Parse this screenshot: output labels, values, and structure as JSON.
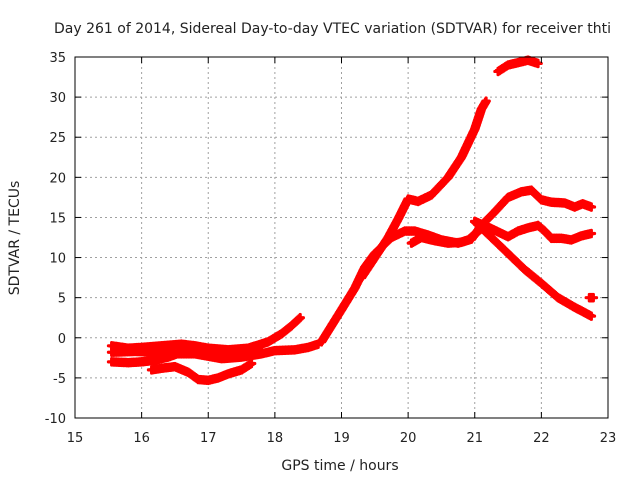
{
  "chart_data": {
    "type": "scatter",
    "title": "Day 261 of 2014, Sidereal Day-to-day VTEC variation (SDTVAR) for receiver thti",
    "xlabel": "GPS time / hours",
    "ylabel": "SDTVAR / TECUs",
    "xlim": [
      15,
      23
    ],
    "ylim": [
      -10,
      35
    ],
    "xticks": [
      15,
      16,
      17,
      18,
      19,
      20,
      21,
      22,
      23
    ],
    "yticks": [
      -10,
      -5,
      0,
      5,
      10,
      15,
      20,
      25,
      30,
      35
    ],
    "grid": true,
    "color": "#ff0000",
    "series": [
      {
        "name": "track-1",
        "points": [
          [
            15.55,
            -1.0
          ],
          [
            15.8,
            -1.3
          ],
          [
            16.0,
            -1.2
          ],
          [
            16.3,
            -1.0
          ],
          [
            16.6,
            -0.8
          ],
          [
            16.8,
            -1.0
          ],
          [
            17.0,
            -1.3
          ],
          [
            17.3,
            -1.5
          ],
          [
            17.6,
            -1.3
          ],
          [
            17.9,
            -0.5
          ],
          [
            18.1,
            0.5
          ],
          [
            18.25,
            1.5
          ],
          [
            18.38,
            2.5
          ]
        ]
      },
      {
        "name": "track-2",
        "points": [
          [
            15.55,
            -1.8
          ],
          [
            15.9,
            -1.7
          ],
          [
            16.2,
            -1.8
          ],
          [
            16.5,
            -2.0
          ],
          [
            16.8,
            -2.0
          ],
          [
            17.0,
            -2.3
          ],
          [
            17.2,
            -2.6
          ],
          [
            17.5,
            -2.4
          ],
          [
            17.8,
            -2.0
          ],
          [
            18.0,
            -1.6
          ],
          [
            18.3,
            -1.5
          ],
          [
            18.5,
            -1.2
          ],
          [
            18.65,
            -0.8
          ]
        ]
      },
      {
        "name": "track-3",
        "points": [
          [
            15.55,
            -3.0
          ],
          [
            15.8,
            -3.1
          ],
          [
            16.0,
            -3.0
          ],
          [
            16.2,
            -2.8
          ],
          [
            16.4,
            -2.4
          ],
          [
            16.6,
            -1.8
          ],
          [
            16.85,
            -1.5
          ],
          [
            17.05,
            -1.8
          ],
          [
            17.3,
            -2.5
          ],
          [
            17.55,
            -2.3
          ],
          [
            17.8,
            -1.8
          ]
        ]
      },
      {
        "name": "track-4",
        "points": [
          [
            16.15,
            -4.0
          ],
          [
            16.3,
            -3.8
          ],
          [
            16.5,
            -3.6
          ],
          [
            16.7,
            -4.3
          ],
          [
            16.85,
            -5.2
          ],
          [
            17.0,
            -5.3
          ],
          [
            17.15,
            -5.0
          ],
          [
            17.3,
            -4.5
          ],
          [
            17.5,
            -4.0
          ],
          [
            17.65,
            -3.2
          ]
        ]
      },
      {
        "name": "track-5",
        "points": [
          [
            18.7,
            -0.5
          ],
          [
            18.85,
            1.5
          ],
          [
            19.0,
            3.5
          ],
          [
            19.2,
            6.2
          ],
          [
            19.35,
            8.8
          ],
          [
            19.5,
            10.5
          ],
          [
            19.75,
            12.5
          ],
          [
            19.95,
            13.3
          ],
          [
            20.1,
            13.3
          ],
          [
            20.3,
            12.8
          ],
          [
            20.5,
            12.2
          ],
          [
            20.75,
            11.8
          ],
          [
            20.9,
            12.2
          ],
          [
            21.1,
            13.6
          ]
        ]
      },
      {
        "name": "track-6",
        "points": [
          [
            19.3,
            7.5
          ],
          [
            19.5,
            10.0
          ],
          [
            19.7,
            12.5
          ],
          [
            19.85,
            14.8
          ],
          [
            20.0,
            17.3
          ],
          [
            20.15,
            17.0
          ],
          [
            20.35,
            17.8
          ],
          [
            20.6,
            20.0
          ],
          [
            20.8,
            22.5
          ],
          [
            21.0,
            26.0
          ],
          [
            21.1,
            28.5
          ],
          [
            21.17,
            29.5
          ]
        ]
      },
      {
        "name": "track-7",
        "points": [
          [
            20.05,
            11.8
          ],
          [
            20.2,
            12.5
          ],
          [
            20.4,
            12.1
          ],
          [
            20.6,
            11.8
          ],
          [
            20.8,
            11.9
          ],
          [
            20.95,
            12.3
          ]
        ]
      },
      {
        "name": "track-8",
        "points": [
          [
            20.95,
            12.3
          ],
          [
            21.1,
            14.0
          ],
          [
            21.3,
            15.7
          ],
          [
            21.5,
            17.5
          ],
          [
            21.7,
            18.2
          ],
          [
            21.85,
            18.4
          ],
          [
            22.0,
            17.2
          ],
          [
            22.15,
            16.9
          ],
          [
            22.35,
            16.8
          ],
          [
            22.5,
            16.3
          ],
          [
            22.62,
            16.7
          ],
          [
            22.75,
            16.3
          ]
        ]
      },
      {
        "name": "track-9",
        "points": [
          [
            21.0,
            14.5
          ],
          [
            21.2,
            13.8
          ],
          [
            21.35,
            13.2
          ],
          [
            21.5,
            12.6
          ],
          [
            21.65,
            13.3
          ],
          [
            21.8,
            13.7
          ],
          [
            21.95,
            14.0
          ],
          [
            22.05,
            13.3
          ],
          [
            22.15,
            12.4
          ],
          [
            22.3,
            12.4
          ],
          [
            22.45,
            12.2
          ],
          [
            22.6,
            12.7
          ],
          [
            22.75,
            13.0
          ]
        ]
      },
      {
        "name": "track-10",
        "points": [
          [
            21.0,
            14.5
          ],
          [
            21.25,
            12.5
          ],
          [
            21.5,
            10.5
          ],
          [
            21.75,
            8.5
          ],
          [
            22.0,
            6.8
          ],
          [
            22.25,
            5.0
          ],
          [
            22.5,
            3.8
          ],
          [
            22.75,
            2.7
          ]
        ]
      },
      {
        "name": "track-11",
        "points": [
          [
            21.35,
            33.2
          ],
          [
            21.5,
            34.0
          ],
          [
            21.65,
            34.3
          ],
          [
            21.8,
            34.6
          ],
          [
            21.95,
            34.2
          ]
        ]
      }
    ],
    "isolated_marks": [
      [
        22.75,
        5.0
      ]
    ]
  }
}
